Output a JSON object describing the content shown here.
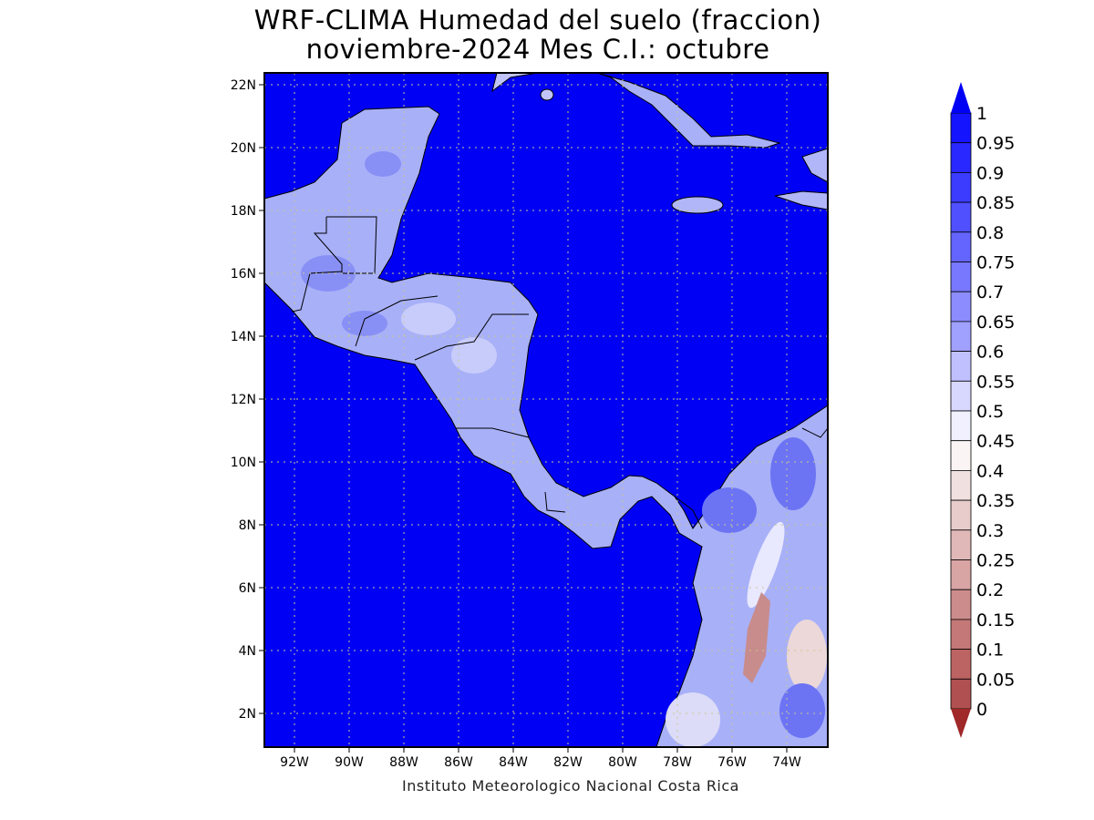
{
  "title": {
    "line1": "WRF-CLIMA Humedad del suelo (fraccion)",
    "line2": "noviembre-2024 Mes C.I.: octubre"
  },
  "credit": "Instituto Meteorologico Nacional Costa Rica",
  "map": {
    "variable": "Humedad del suelo (fraccion)",
    "region": "Central America / Caribbean",
    "lon_ticks": [
      "92W",
      "90W",
      "88W",
      "86W",
      "84W",
      "82W",
      "80W",
      "78W",
      "76W",
      "74W"
    ],
    "lat_ticks": [
      "22N",
      "20N",
      "18N",
      "16N",
      "14N",
      "12N",
      "10N",
      "8N",
      "6N",
      "4N",
      "2N"
    ],
    "grid": "dotted",
    "ocean_color": "#0000f5",
    "land_color": "#a8b0f8"
  },
  "colorbar": {
    "levels": [
      "1",
      "0.95",
      "0.9",
      "0.85",
      "0.8",
      "0.75",
      "0.7",
      "0.65",
      "0.6",
      "0.55",
      "0.5",
      "0.45",
      "0.4",
      "0.35",
      "0.3",
      "0.25",
      "0.2",
      "0.15",
      "0.1",
      "0.05",
      "0"
    ],
    "colors": [
      "#1414ff",
      "#2828ff",
      "#3c3cff",
      "#5050ff",
      "#6464ff",
      "#7878ff",
      "#8c8cff",
      "#a0a0ff",
      "#c0c0ff",
      "#d8d8ff",
      "#f0f0ff",
      "#faf4f4",
      "#f0e0e0",
      "#e8cccc",
      "#e0b8b8",
      "#d8a4a4",
      "#cc8c8c",
      "#c47878",
      "#bc6464",
      "#b05050",
      "#a83c3c"
    ],
    "top_arrow_color": "#0000f5",
    "bottom_arrow_color": "#a02828"
  }
}
